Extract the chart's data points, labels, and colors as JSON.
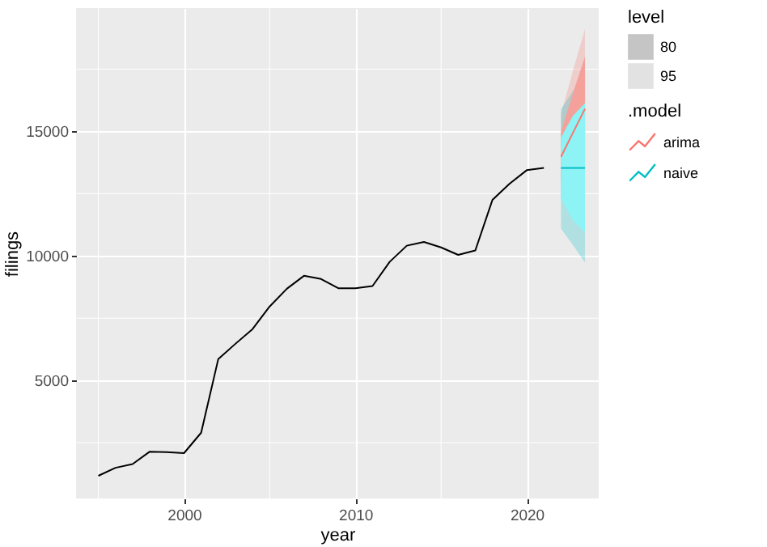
{
  "chart_data": {
    "type": "line",
    "xlabel": "year",
    "ylabel": "filings",
    "legend_title": [
      "level",
      ".model"
    ],
    "annotations": [
      "80",
      "95"
    ],
    "xlim": [
      1993.7,
      2024.2
    ],
    "ylim": [
      260,
      19950
    ],
    "xticks": [
      2000,
      2010,
      2020
    ],
    "yticks": [
      5000,
      10000,
      15000
    ],
    "grid": true,
    "legend": "right",
    "marker": "none",
    "line_style": "solid",
    "series": [
      {
        "color": "#000000",
        "x": [
          1995,
          1996,
          1997,
          1998,
          1999,
          2000,
          2001,
          2002,
          2003,
          2004,
          2005,
          2006,
          2007,
          2008,
          2009,
          2010,
          2011,
          2012,
          2013,
          2014,
          2015,
          2016,
          2017,
          2018,
          2019,
          2020,
          2021
        ],
        "values": [
          1170,
          1490,
          1640,
          2140,
          2120,
          2080,
          2900,
          5860,
          6470,
          7060,
          7970,
          8680,
          9200,
          9070,
          8700,
          8700,
          8790,
          9760,
          10410,
          10560,
          10340,
          10040,
          10220,
          12250,
          12900,
          13440,
          13530
        ]
      },
      {
        "name": "arima",
        "color": "#f8766d",
        "x": [
          2022,
          2022.7,
          2023.4
        ],
        "values": [
          13980,
          14950,
          15910
        ],
        "lower": [
          12280,
          12450,
          12710
        ],
        "upper": [
          15680,
          17450,
          19110
        ]
      },
      {
        "name": "naive",
        "color": "#00bfc4",
        "x": [
          2022,
          2022.7,
          2023.4
        ],
        "values": [
          13530,
          13530,
          13530
        ],
        "lower": [
          11100,
          10430,
          9730
        ],
        "upper": [
          15900,
          16630,
          17330
        ]
      },
      {
        "color": "#f4a19b",
        "x": [
          2022,
          2022.7,
          2023.4
        ],
        "values": [
          null,
          null,
          null
        ],
        "lower": [
          12980,
          13350,
          13810
        ],
        "upper": [
          14980,
          16550,
          18010
        ]
      },
      {
        "color": "#8ef3f5",
        "x": [
          2022,
          2022.7,
          2023.4
        ],
        "values": [
          null,
          null,
          null
        ],
        "lower": [
          12300,
          11430,
          10930
        ],
        "upper": [
          14760,
          15630,
          16130
        ]
      }
    ]
  }
}
